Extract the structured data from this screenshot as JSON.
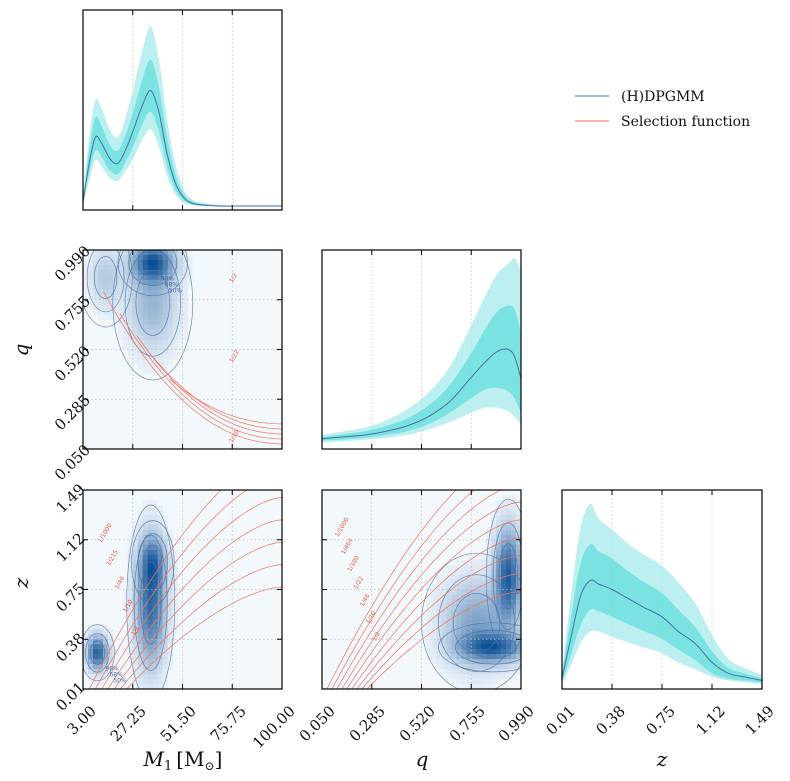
{
  "legend": {
    "items": [
      {
        "label": "(H)DPGMM",
        "color": "#4a6fa5"
      },
      {
        "label": "Selection function",
        "color": "#f4715a"
      }
    ]
  },
  "colors": {
    "model_line": "#4a6fa5",
    "band_inner": "#3ad6d6",
    "band_outer": "#a6eaea",
    "selection_line": "#f4715a",
    "density_low": "#f3f8fd",
    "density_high": "#0b4f95",
    "grid": "#bdbdbd"
  },
  "axes": {
    "m1": {
      "label": "M_1 [M_⊙]",
      "label_main": "M",
      "label_sub": "1",
      "label_unit": "[M",
      "label_unit_sub": "⊙",
      "label_close": "]",
      "ticks": [
        "3.00",
        "27.25",
        "51.50",
        "75.75",
        "100.00"
      ],
      "range": [
        3.0,
        100.0
      ]
    },
    "q": {
      "label": "q",
      "ticks": [
        "0.050",
        "0.285",
        "0.520",
        "0.755",
        "0.990"
      ],
      "range": [
        0.05,
        0.99
      ]
    },
    "z": {
      "label": "z",
      "ticks": [
        "0.01",
        "0.38",
        "0.75",
        "1.12",
        "1.49"
      ],
      "range": [
        0.01,
        1.49
      ]
    }
  },
  "chart_data": [
    {
      "panel": "m1-marginal",
      "type": "area",
      "xlabel": "",
      "x": [
        3.0,
        6.0,
        9.0,
        12.0,
        16.0,
        20.0,
        24.0,
        28.0,
        32.0,
        36.0,
        40.0,
        44.0,
        48.0,
        52.0,
        56.0,
        62.0,
        70.0,
        80.0,
        90.0,
        100.0
      ],
      "series": [
        {
          "name": "(H)DPGMM",
          "median": [
            0.05,
            0.45,
            0.72,
            0.66,
            0.5,
            0.45,
            0.6,
            0.82,
            1.05,
            1.2,
            0.98,
            0.55,
            0.25,
            0.1,
            0.04,
            0.02,
            0.01,
            0.01,
            0.01,
            0.01
          ],
          "inner_lo": [
            0.03,
            0.35,
            0.58,
            0.52,
            0.38,
            0.34,
            0.47,
            0.65,
            0.86,
            0.98,
            0.78,
            0.42,
            0.18,
            0.07,
            0.03,
            0.01,
            0.01,
            0.01,
            0.01,
            0.01
          ],
          "inner_hi": [
            0.08,
            0.58,
            0.92,
            0.84,
            0.64,
            0.58,
            0.76,
            1.02,
            1.32,
            1.52,
            1.24,
            0.72,
            0.34,
            0.14,
            0.06,
            0.03,
            0.02,
            0.01,
            0.01,
            0.01
          ],
          "outer_lo": [
            0.02,
            0.27,
            0.48,
            0.42,
            0.3,
            0.27,
            0.38,
            0.52,
            0.7,
            0.8,
            0.62,
            0.32,
            0.13,
            0.05,
            0.02,
            0.01,
            0.01,
            0.01,
            0.01,
            0.01
          ],
          "outer_hi": [
            0.11,
            0.72,
            1.1,
            1.02,
            0.8,
            0.72,
            0.94,
            1.26,
            1.62,
            1.86,
            1.52,
            0.9,
            0.45,
            0.19,
            0.08,
            0.04,
            0.02,
            0.01,
            0.01,
            0.01
          ]
        }
      ],
      "ylim": [
        0,
        2.0
      ]
    },
    {
      "panel": "q-marginal",
      "type": "area",
      "xlabel": "",
      "x": [
        0.05,
        0.15,
        0.25,
        0.35,
        0.45,
        0.55,
        0.65,
        0.75,
        0.82,
        0.88,
        0.93,
        0.96,
        0.99
      ],
      "series": [
        {
          "name": "(H)DPGMM",
          "median": [
            0.04,
            0.05,
            0.06,
            0.08,
            0.11,
            0.16,
            0.24,
            0.37,
            0.46,
            0.52,
            0.53,
            0.49,
            0.37
          ],
          "inner_lo": [
            0.03,
            0.035,
            0.045,
            0.06,
            0.08,
            0.12,
            0.18,
            0.26,
            0.31,
            0.32,
            0.3,
            0.26,
            0.18
          ],
          "inner_hi": [
            0.05,
            0.065,
            0.08,
            0.11,
            0.15,
            0.22,
            0.33,
            0.5,
            0.64,
            0.74,
            0.77,
            0.75,
            0.62
          ],
          "outer_lo": [
            0.02,
            0.025,
            0.035,
            0.045,
            0.06,
            0.09,
            0.13,
            0.18,
            0.21,
            0.21,
            0.19,
            0.16,
            0.12
          ],
          "outer_hi": [
            0.06,
            0.08,
            0.1,
            0.14,
            0.2,
            0.29,
            0.43,
            0.65,
            0.82,
            0.95,
            1.0,
            1.03,
            0.96
          ]
        }
      ],
      "ylim": [
        0,
        1.06
      ]
    },
    {
      "panel": "z-marginal",
      "type": "area",
      "xlabel": "",
      "x": [
        0.01,
        0.08,
        0.15,
        0.22,
        0.28,
        0.38,
        0.5,
        0.62,
        0.75,
        0.87,
        1.0,
        1.12,
        1.24,
        1.36,
        1.49
      ],
      "series": [
        {
          "name": "(H)DPGMM",
          "median": [
            0.04,
            0.28,
            0.5,
            0.58,
            0.56,
            0.53,
            0.48,
            0.43,
            0.38,
            0.3,
            0.23,
            0.13,
            0.07,
            0.05,
            0.03
          ],
          "inner_lo": [
            0.02,
            0.18,
            0.34,
            0.42,
            0.41,
            0.38,
            0.34,
            0.3,
            0.26,
            0.2,
            0.14,
            0.07,
            0.04,
            0.03,
            0.02
          ],
          "inner_hi": [
            0.06,
            0.4,
            0.68,
            0.78,
            0.74,
            0.7,
            0.63,
            0.57,
            0.51,
            0.42,
            0.32,
            0.19,
            0.1,
            0.07,
            0.04
          ],
          "outer_lo": [
            0.01,
            0.12,
            0.24,
            0.3,
            0.3,
            0.27,
            0.24,
            0.21,
            0.18,
            0.13,
            0.09,
            0.05,
            0.03,
            0.02,
            0.01
          ],
          "outer_hi": [
            0.08,
            0.52,
            0.88,
            1.0,
            0.92,
            0.86,
            0.78,
            0.72,
            0.66,
            0.57,
            0.45,
            0.28,
            0.15,
            0.1,
            0.06
          ]
        }
      ],
      "ylim": [
        0,
        1.06
      ]
    },
    {
      "panel": "q-vs-m1",
      "type": "heatmap",
      "xlabel": "M_1 [M_⊙]",
      "ylabel": "q",
      "blobs": [
        {
          "x": 37.0,
          "y": 0.93,
          "sx": 6.5,
          "sy": 0.06,
          "w": 1.0
        },
        {
          "x": 37.0,
          "y": 0.74,
          "sx": 7.5,
          "sy": 0.14,
          "w": 0.35
        },
        {
          "x": 14.0,
          "y": 0.86,
          "sx": 5.0,
          "sy": 0.09,
          "w": 0.22
        }
      ],
      "selection_contour_labels": [
        "1/10",
        "1/22",
        "1/2"
      ],
      "credible_labels": [
        "90%",
        "68%",
        "50%"
      ]
    },
    {
      "panel": "z-vs-m1",
      "type": "heatmap",
      "xlabel": "M_1 [M_⊙]",
      "ylabel": "z",
      "blobs": [
        {
          "x": 10.0,
          "y": 0.28,
          "sx": 3.2,
          "sy": 0.08,
          "w": 0.9
        },
        {
          "x": 36.0,
          "y": 0.65,
          "sx": 4.5,
          "sy": 0.28,
          "w": 0.85
        },
        {
          "x": 37.0,
          "y": 0.95,
          "sx": 4.0,
          "sy": 0.12,
          "w": 0.55
        }
      ],
      "selection_contour_labels": [
        "1/1000",
        "1/215",
        "1/46",
        "1/10",
        "1/2"
      ],
      "credible_labels": [
        "90%",
        "68%",
        "50%"
      ]
    },
    {
      "panel": "z-vs-q",
      "type": "heatmap",
      "xlabel": "q",
      "ylabel": "z",
      "blobs": [
        {
          "x": 0.93,
          "y": 0.85,
          "sx": 0.04,
          "sy": 0.22,
          "w": 0.85
        },
        {
          "x": 0.86,
          "y": 0.32,
          "sx": 0.1,
          "sy": 0.07,
          "w": 0.75
        },
        {
          "x": 0.78,
          "y": 0.5,
          "sx": 0.1,
          "sy": 0.2,
          "w": 0.4
        }
      ],
      "selection_contour_labels": [
        "1/1000",
        "1/464",
        "1/100",
        "1/22",
        "1/46",
        "1/10",
        "1/2"
      ],
      "credible_labels": [
        "90%",
        "68%",
        "50%"
      ]
    }
  ]
}
